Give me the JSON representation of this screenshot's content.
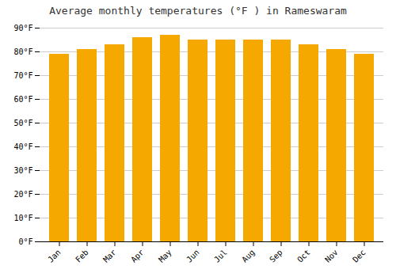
{
  "chart_data": {
    "type": "bar",
    "title": "Average monthly temperatures (°F ) in Rameswaram",
    "categories": [
      "Jan",
      "Feb",
      "Mar",
      "Apr",
      "May",
      "Jun",
      "Jul",
      "Aug",
      "Sep",
      "Oct",
      "Nov",
      "Dec"
    ],
    "values": [
      79,
      81,
      83,
      86,
      87,
      85,
      85,
      85,
      85,
      83,
      81,
      79
    ],
    "color": "#F5A800",
    "ylim": [
      0,
      90
    ],
    "yticks": [
      {
        "value": 0,
        "label": "0°F"
      },
      {
        "value": 10,
        "label": "10°F"
      },
      {
        "value": 20,
        "label": "20°F"
      },
      {
        "value": 30,
        "label": "30°F"
      },
      {
        "value": 40,
        "label": "40°F"
      },
      {
        "value": 50,
        "label": "50°F"
      },
      {
        "value": 60,
        "label": "60°F"
      },
      {
        "value": 70,
        "label": "70°F"
      },
      {
        "value": 80,
        "label": "80°F"
      },
      {
        "value": 90,
        "label": "90°F"
      }
    ],
    "grid": true
  }
}
